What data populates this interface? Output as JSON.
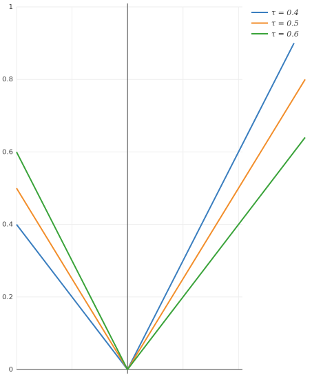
{
  "chart_data": {
    "type": "line",
    "title": "",
    "xlabel": "",
    "ylabel": "",
    "xlim": [
      -1.0,
      1.6
    ],
    "ylim": [
      0,
      1
    ],
    "y_ticks": [
      0,
      0.2,
      0.4,
      0.6,
      0.8,
      1
    ],
    "y_tick_labels": [
      "0",
      "0.2",
      "0.4",
      "0.6",
      "0.8",
      "1"
    ],
    "x_gridlines": [
      -1.0,
      -0.5,
      0.5,
      1.0
    ],
    "zero_line_x": 0,
    "grid": true,
    "legend_position": "top-right",
    "series": [
      {
        "name": "τ = 0.4",
        "color": "#3a7ebf",
        "x": [
          -1.0,
          0,
          1.5
        ],
        "y": [
          0.4,
          0,
          0.9
        ]
      },
      {
        "name": "τ = 0.5",
        "color": "#f28e2b",
        "x": [
          -1.0,
          0,
          1.6
        ],
        "y": [
          0.5,
          0,
          0.8
        ]
      },
      {
        "name": "τ = 0.6",
        "color": "#3aa33a",
        "x": [
          -1.0,
          0,
          1.6
        ],
        "y": [
          0.6,
          0,
          0.64
        ]
      }
    ]
  }
}
